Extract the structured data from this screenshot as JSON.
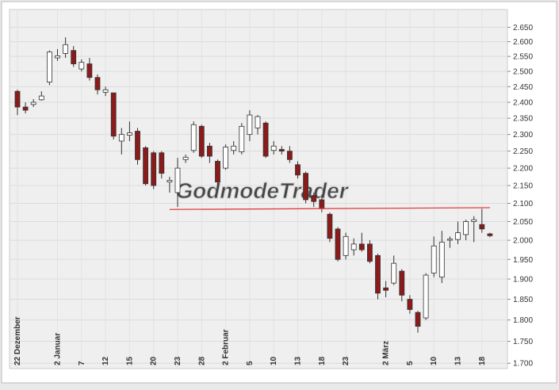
{
  "chart_data": {
    "type": "candlestick",
    "watermark": "GodmodeTrader",
    "categories": [
      "22 Dezember",
      null,
      null,
      null,
      null,
      "2 Januar",
      null,
      null,
      "7",
      null,
      null,
      "12",
      null,
      null,
      "15",
      null,
      null,
      "20",
      null,
      null,
      "23",
      null,
      null,
      "28",
      null,
      null,
      "2 Februar",
      null,
      null,
      "5",
      null,
      null,
      "10",
      null,
      null,
      "13",
      null,
      null,
      "18",
      null,
      null,
      "23",
      null,
      null,
      null,
      null,
      "2 März",
      null,
      null,
      "5",
      null,
      null,
      "10",
      null,
      null,
      "13",
      null,
      null,
      "18",
      null
    ],
    "open": [
      2435,
      2385,
      2393,
      2408,
      2465,
      2545,
      2560,
      2570,
      2508,
      2525,
      2480,
      2432,
      2430,
      2280,
      2298,
      2310,
      2260,
      2245,
      2245,
      2160,
      2130,
      2225,
      2252,
      2325,
      2265,
      2220,
      2200,
      2252,
      2248,
      2300,
      2320,
      2335,
      2252,
      2255,
      2250,
      2210,
      2185,
      2122,
      2110,
      2070,
      2030,
      1960,
      1975,
      1990,
      1990,
      1960,
      1878,
      1890,
      1920,
      1850,
      1818,
      1805,
      1915,
      1905,
      2000,
      2002,
      2015,
      2050,
      2042,
      2017
    ],
    "high": [
      2440,
      2400,
      2410,
      2435,
      2570,
      2575,
      2615,
      2585,
      2540,
      2545,
      2490,
      2450,
      2430,
      2320,
      2340,
      2320,
      2265,
      2250,
      2250,
      2175,
      2230,
      2240,
      2340,
      2330,
      2275,
      2225,
      2270,
      2280,
      2335,
      2375,
      2360,
      2340,
      2280,
      2265,
      2265,
      2220,
      2190,
      2130,
      2120,
      2075,
      2035,
      2020,
      2005,
      2020,
      2000,
      1965,
      1895,
      1960,
      1925,
      1860,
      1822,
      1915,
      2010,
      2025,
      2010,
      2050,
      2055,
      2065,
      2085,
      2020
    ],
    "low": [
      2360,
      2365,
      2385,
      2405,
      2455,
      2535,
      2545,
      2515,
      2500,
      2470,
      2425,
      2420,
      2285,
      2240,
      2280,
      2210,
      2150,
      2140,
      2170,
      2130,
      2090,
      2215,
      2245,
      2230,
      2215,
      2150,
      2195,
      2240,
      2240,
      2280,
      2300,
      2230,
      2240,
      2240,
      2215,
      2170,
      2100,
      2090,
      2075,
      1995,
      1945,
      1950,
      1960,
      1970,
      1940,
      1850,
      1855,
      1885,
      1845,
      1815,
      1770,
      1800,
      1905,
      1890,
      1980,
      1990,
      2000,
      1995,
      2020,
      2008
    ],
    "close": [
      2385,
      2375,
      2400,
      2420,
      2565,
      2552,
      2590,
      2525,
      2530,
      2480,
      2440,
      2440,
      2295,
      2300,
      2305,
      2225,
      2155,
      2150,
      2185,
      2165,
      2200,
      2232,
      2330,
      2235,
      2235,
      2160,
      2262,
      2265,
      2325,
      2360,
      2355,
      2235,
      2265,
      2250,
      2225,
      2180,
      2110,
      2105,
      2085,
      2005,
      1950,
      2010,
      1990,
      1975,
      1945,
      1865,
      1872,
      1940,
      1860,
      1825,
      1785,
      1910,
      1985,
      1995,
      2003,
      2020,
      2050,
      2055,
      2030,
      2012
    ],
    "up_color": "#ffffff",
    "down_color": "#8b1a1a",
    "trendline": {
      "start": 19,
      "end": 59,
      "values": [
        2083,
        2088
      ],
      "color": "#e04040"
    },
    "log_scale": true,
    "grid": true,
    "ylim": [
      1688,
      2713
    ],
    "yticks": [
      {
        "value": 1700,
        "label": "1.700"
      },
      {
        "value": 1750,
        "label": "1.750"
      },
      {
        "value": 1800,
        "label": "1.800"
      },
      {
        "value": 1850,
        "label": "1.850"
      },
      {
        "value": 1900,
        "label": "1.900"
      },
      {
        "value": 1950,
        "label": "1.950"
      },
      {
        "value": 2000,
        "label": "2.000"
      },
      {
        "value": 2050,
        "label": "2.050"
      },
      {
        "value": 2100,
        "label": "2.100"
      },
      {
        "value": 2150,
        "label": "2.150"
      },
      {
        "value": 2200,
        "label": "2.200"
      },
      {
        "value": 2250,
        "label": "2.250"
      },
      {
        "value": 2300,
        "label": "2.300"
      },
      {
        "value": 2350,
        "label": "2.350"
      },
      {
        "value": 2400,
        "label": "2.400"
      },
      {
        "value": 2450,
        "label": "2.450"
      },
      {
        "value": 2500,
        "label": "2.500"
      },
      {
        "value": 2550,
        "label": "2.550"
      },
      {
        "value": 2600,
        "label": "2.600"
      },
      {
        "value": 2650,
        "label": "2.650"
      }
    ]
  }
}
